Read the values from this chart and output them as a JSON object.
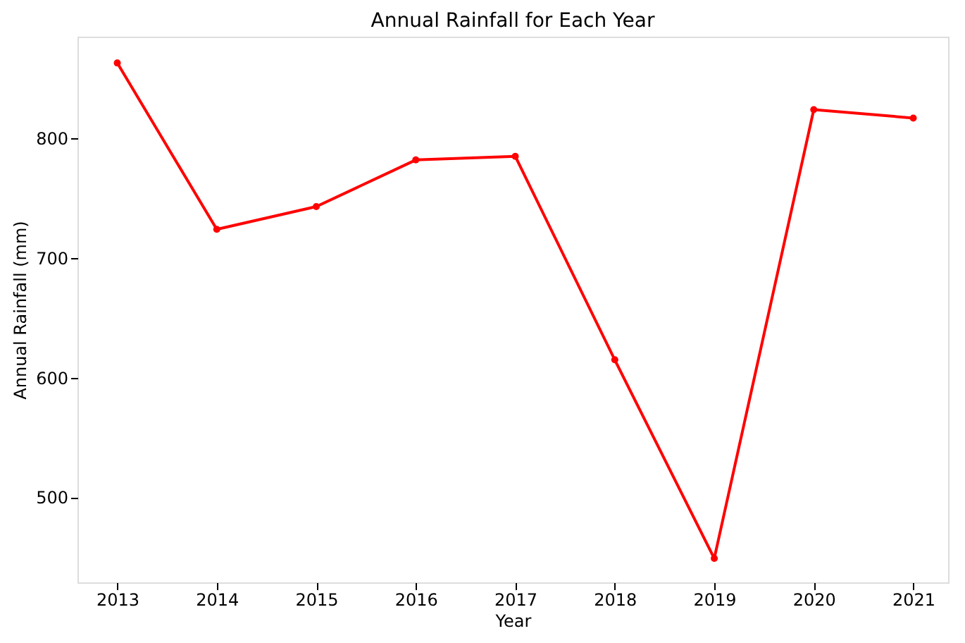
{
  "chart_data": {
    "type": "line",
    "title": "Annual Rainfall for Each Year",
    "xlabel": "Year",
    "ylabel": "Annual Rainfall (mm)",
    "x": [
      2013,
      2014,
      2015,
      2016,
      2017,
      2018,
      2019,
      2020,
      2021
    ],
    "series": [
      {
        "color": "#ff0000",
        "values": [
          863,
          724,
          743,
          782,
          785,
          615,
          449,
          824,
          817
        ]
      }
    ],
    "xlim": [
      2012.6,
      2021.35
    ],
    "xticks": [
      2013,
      2014,
      2015,
      2016,
      2017,
      2018,
      2019,
      2020,
      2021
    ],
    "ylim": [
      429,
      885
    ],
    "yticks": [
      500,
      600,
      700,
      800
    ],
    "marker": "circle",
    "line_style": "solid",
    "grid": false
  }
}
